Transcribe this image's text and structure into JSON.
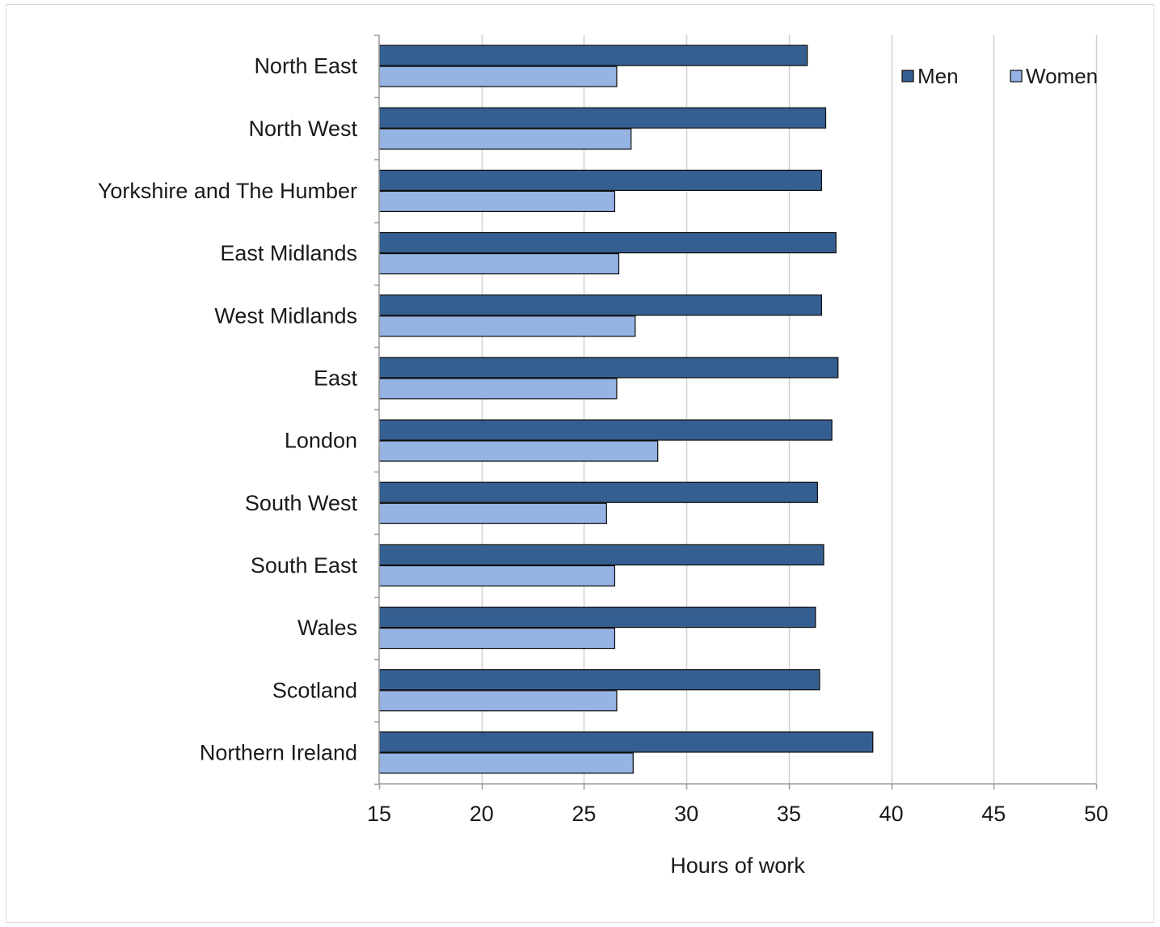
{
  "chart_data": {
    "type": "bar",
    "orientation": "horizontal",
    "categories": [
      "North East",
      "North West",
      "Yorkshire and The Humber",
      "East Midlands",
      "West Midlands",
      "East",
      "London",
      "South West",
      "South East",
      "Wales",
      "Scotland",
      "Northern Ireland"
    ],
    "series": [
      {
        "name": "Men",
        "color": "#365f91",
        "values": [
          35.9,
          36.8,
          36.6,
          37.3,
          36.6,
          37.4,
          37.1,
          36.4,
          36.7,
          36.3,
          36.5,
          39.1
        ]
      },
      {
        "name": "Women",
        "color": "#95b3e3",
        "values": [
          26.6,
          27.3,
          26.5,
          26.7,
          27.5,
          26.6,
          28.6,
          26.1,
          26.5,
          26.5,
          26.6,
          27.4
        ]
      }
    ],
    "xlim": [
      15,
      50
    ],
    "xticks": [
      "15",
      "20",
      "25",
      "30",
      "35",
      "40",
      "45",
      "50"
    ],
    "xlabel": "Hours of work",
    "grid": "vertical",
    "legend_position": "top-right"
  }
}
